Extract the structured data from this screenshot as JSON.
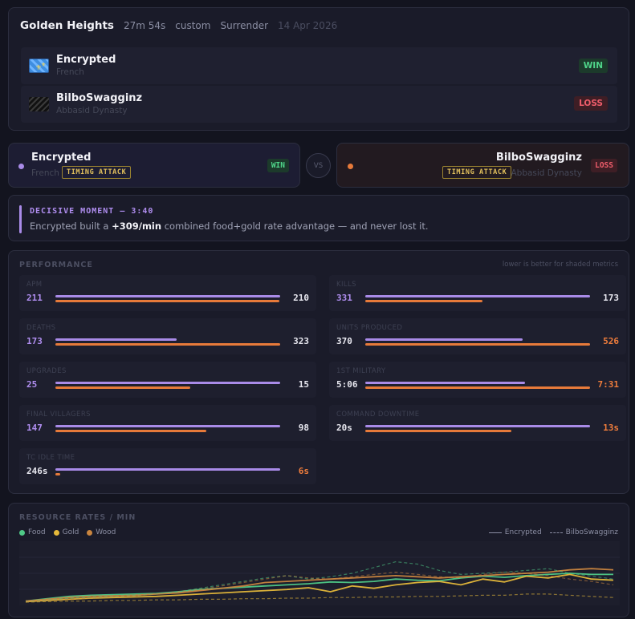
{
  "match": {
    "title": "Golden Heights",
    "duration": "27m 54s",
    "mode": "custom",
    "end": "Surrender",
    "date": "14 Apr 2026"
  },
  "players": [
    {
      "name": "Encrypted",
      "civ": "French",
      "result": "WIN",
      "tag": "TIMING ATTACK",
      "color": "#a98be8"
    },
    {
      "name": "BilboSwagginz",
      "civ": "Abbasid Dynasty",
      "result": "LOSS",
      "tag": "TIMING ATTACK",
      "color": "#e77a3a"
    }
  ],
  "vs_label": "VS",
  "decisive": {
    "title": "DECISIVE MOMENT — 3:40",
    "text_before": "Encrypted built a",
    "highlight": "+309/min",
    "text_after": "combined food+gold rate advantage — and never lost it."
  },
  "performance": {
    "title": "PERFORMANCE",
    "note": "lower is better for shaded metrics",
    "metrics": [
      {
        "label": "APM",
        "left": "211",
        "right": "210",
        "left_fill": 1.0,
        "right_fill": 0.995,
        "winner": "left"
      },
      {
        "label": "KILLS",
        "left": "331",
        "right": "173",
        "left_fill": 1.0,
        "right_fill": 0.52,
        "winner": "left"
      },
      {
        "label": "DEATHS",
        "left": "173",
        "right": "323",
        "left_fill": 0.54,
        "right_fill": 1.0,
        "winner": "left"
      },
      {
        "label": "UNITS PRODUCED",
        "left": "370",
        "right": "526",
        "left_fill": 0.7,
        "right_fill": 1.0,
        "winner": "right"
      },
      {
        "label": "UPGRADES",
        "left": "25",
        "right": "15",
        "left_fill": 1.0,
        "right_fill": 0.6,
        "winner": "left"
      },
      {
        "label": "1ST MILITARY",
        "left": "5:06",
        "right": "7:31",
        "left_fill": 0.71,
        "right_fill": 1.0,
        "winner": "right"
      },
      {
        "label": "FINAL VILLAGERS",
        "left": "147",
        "right": "98",
        "left_fill": 1.0,
        "right_fill": 0.67,
        "winner": "left"
      },
      {
        "label": "COMMAND DOWNTIME",
        "left": "20s",
        "right": "13s",
        "left_fill": 1.0,
        "right_fill": 0.65,
        "winner": "right"
      },
      {
        "label": "TC IDLE TIME",
        "left": "246s",
        "right": "6s",
        "left_fill": 1.0,
        "right_fill": 0.02,
        "winner": "right"
      }
    ]
  },
  "resources": {
    "title": "RESOURCE RATES / MIN",
    "legend": [
      {
        "label": "Food",
        "color": "#4fc987"
      },
      {
        "label": "Gold",
        "color": "#e6b93a"
      },
      {
        "label": "Wood",
        "color": "#c9853f"
      }
    ],
    "style_legend": [
      {
        "label": "Encrypted",
        "style": "solid"
      },
      {
        "label": "BilboSwagginz",
        "style": "dashed"
      }
    ]
  },
  "chart_data": {
    "type": "line",
    "title": "RESOURCE RATES / MIN",
    "x": [
      0,
      1,
      2,
      3,
      4,
      5,
      6,
      7,
      8,
      9,
      10,
      11,
      12,
      13,
      14,
      15,
      16,
      17,
      18,
      19,
      20,
      21,
      22,
      23,
      24,
      25,
      26,
      27
    ],
    "ylim": [
      0,
      100
    ],
    "grid": true,
    "series": [
      {
        "name": "Food",
        "player": "Encrypted",
        "style": "solid",
        "color": "#4fc987",
        "values": [
          2,
          6,
          10,
          12,
          13,
          14,
          15,
          18,
          22,
          24,
          26,
          28,
          30,
          32,
          35,
          34,
          36,
          40,
          38,
          37,
          42,
          45,
          43,
          46,
          48,
          50,
          48,
          48
        ]
      },
      {
        "name": "Gold",
        "player": "Encrypted",
        "style": "solid",
        "color": "#e6b93a",
        "values": [
          1,
          3,
          5,
          7,
          8,
          9,
          10,
          12,
          14,
          16,
          18,
          20,
          22,
          25,
          18,
          28,
          24,
          30,
          34,
          36,
          30,
          40,
          35,
          45,
          42,
          48,
          40,
          38
        ]
      },
      {
        "name": "Wood",
        "player": "Encrypted",
        "style": "solid",
        "color": "#c9853f",
        "values": [
          2,
          5,
          8,
          10,
          11,
          12,
          14,
          16,
          20,
          24,
          28,
          34,
          36,
          38,
          40,
          42,
          44,
          46,
          44,
          42,
          44,
          46,
          48,
          50,
          52,
          56,
          58,
          56
        ]
      },
      {
        "name": "Food",
        "player": "BilboSwagginz",
        "style": "dashed",
        "color": "#4fc987",
        "values": [
          1,
          4,
          7,
          9,
          10,
          12,
          14,
          18,
          24,
          30,
          36,
          42,
          46,
          40,
          44,
          50,
          60,
          70,
          66,
          55,
          48,
          50,
          52,
          55,
          58,
          50,
          45,
          40
        ]
      },
      {
        "name": "Gold",
        "player": "BilboSwagginz",
        "style": "dashed",
        "color": "#e6b93a",
        "values": [
          0,
          1,
          2,
          2,
          3,
          3,
          4,
          4,
          5,
          5,
          6,
          6,
          7,
          7,
          8,
          8,
          9,
          9,
          10,
          10,
          11,
          12,
          12,
          14,
          14,
          12,
          10,
          8
        ]
      },
      {
        "name": "Wood",
        "player": "BilboSwagginz",
        "style": "dashed",
        "color": "#c9853f",
        "values": [
          1,
          3,
          5,
          7,
          9,
          11,
          14,
          18,
          22,
          28,
          34,
          40,
          46,
          42,
          40,
          44,
          48,
          52,
          48,
          44,
          42,
          48,
          52,
          50,
          46,
          40,
          36,
          30
        ]
      }
    ]
  }
}
